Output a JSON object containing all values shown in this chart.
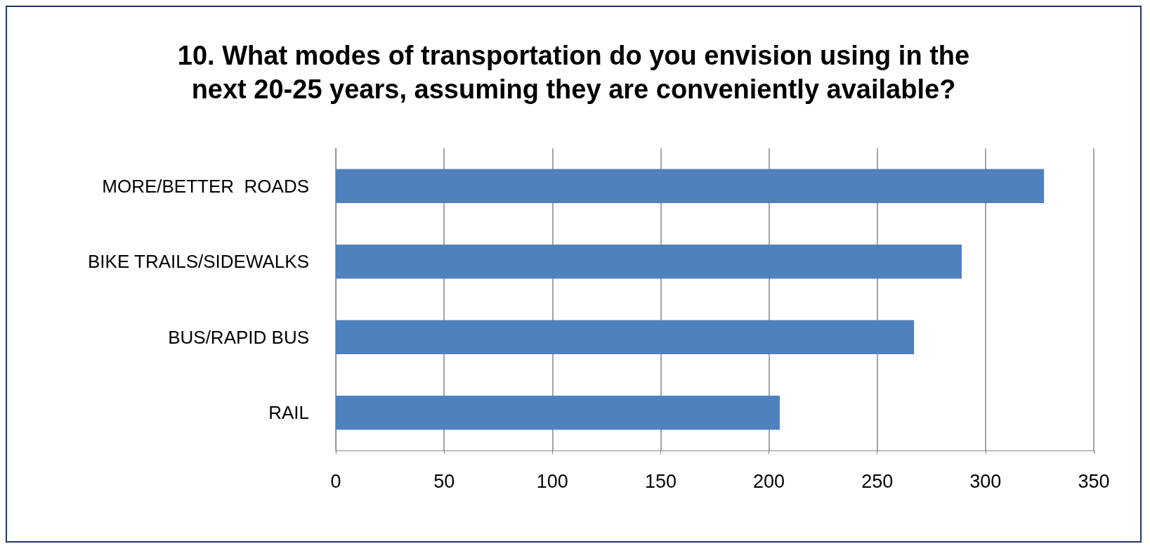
{
  "chart_data": {
    "type": "bar",
    "orientation": "horizontal",
    "title": "10. What modes of transportation do you envision using in the\nnext 20-25 years, assuming they are conveniently available?",
    "categories": [
      "MORE/BETTER  ROADS",
      "BIKE TRAILS/SIDEWALKS",
      "BUS/RAPID BUS",
      "RAIL"
    ],
    "values": [
      327,
      289,
      267,
      205
    ],
    "color": "#4f81bd",
    "xlim": [
      0,
      350
    ],
    "xticks": [
      0,
      50,
      100,
      150,
      200,
      250,
      300,
      350
    ],
    "grid": "x"
  }
}
